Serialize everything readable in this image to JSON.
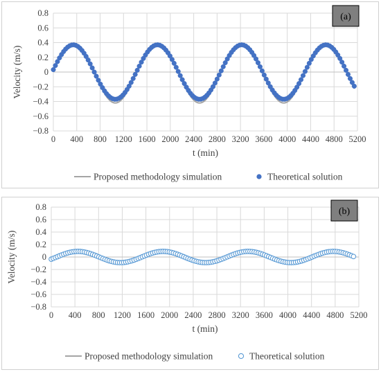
{
  "chart_data": [
    {
      "type": "line+scatter",
      "panel_label": "(a)",
      "xlabel": "t (min)",
      "ylabel": "Velocity (m/s)",
      "xlim": [
        0,
        5200
      ],
      "ylim": [
        -0.8,
        0.8
      ],
      "xticks": [
        "0",
        "400",
        "800",
        "1200",
        "1600",
        "2000",
        "2400",
        "2800",
        "3200",
        "3600",
        "4000",
        "4400",
        "4800",
        "5200"
      ],
      "yticks": [
        "0.8",
        "0.6",
        "0.4",
        "0.2",
        "0",
        "−0.2",
        "−0.4",
        "−0.6",
        "−0.8"
      ],
      "grid": true,
      "legend_position": "bottom",
      "series": [
        {
          "name": "Proposed methodology simulation",
          "style": "line",
          "color": "#a5a5a5",
          "model": {
            "form": "sine",
            "amplitude_pos": 0.38,
            "amplitude_neg": 0.42,
            "period": 1440,
            "phase_time_zero_crossing": -20,
            "x_start": 0,
            "x_end": 5150,
            "step": 10
          }
        },
        {
          "name": "Theoretical solution",
          "style": "filled-circle",
          "color": "#4472c4",
          "model": {
            "form": "sine",
            "amplitude": 0.37,
            "period": 1440,
            "phase_time_zero_crossing": -20,
            "x_start": 0,
            "x_end": 5150,
            "step": 35
          }
        }
      ]
    },
    {
      "type": "line+scatter",
      "panel_label": "(b)",
      "xlabel": "t (min)",
      "ylabel": "Velocity (m/s)",
      "xlim": [
        0,
        5200
      ],
      "ylim": [
        -0.8,
        0.8
      ],
      "xticks": [
        "0",
        "400",
        "800",
        "1200",
        "1600",
        "2000",
        "2400",
        "2800",
        "3200",
        "3600",
        "4000",
        "4400",
        "4800",
        "5200"
      ],
      "yticks": [
        "0.8",
        "0.6",
        "0.4",
        "0.2",
        "0",
        "−0.2",
        "−0.4",
        "−0.6",
        "−0.8"
      ],
      "grid": true,
      "legend_position": "bottom",
      "series": [
        {
          "name": "Proposed methodology simulation",
          "style": "line",
          "color": "#a5a5a5",
          "model": {
            "form": "sine",
            "amplitude": 0.09,
            "period": 1440,
            "phase_time_zero_crossing": 90,
            "x_start": 0,
            "x_end": 5130,
            "step": 10
          }
        },
        {
          "name": "Theoretical solution",
          "style": "open-circle",
          "color": "#5b9bd5",
          "model": {
            "form": "sine",
            "amplitude": 0.09,
            "period": 1440,
            "phase_time_zero_crossing": 90,
            "x_start": 0,
            "x_end": 5130,
            "step": 35
          }
        }
      ]
    }
  ]
}
